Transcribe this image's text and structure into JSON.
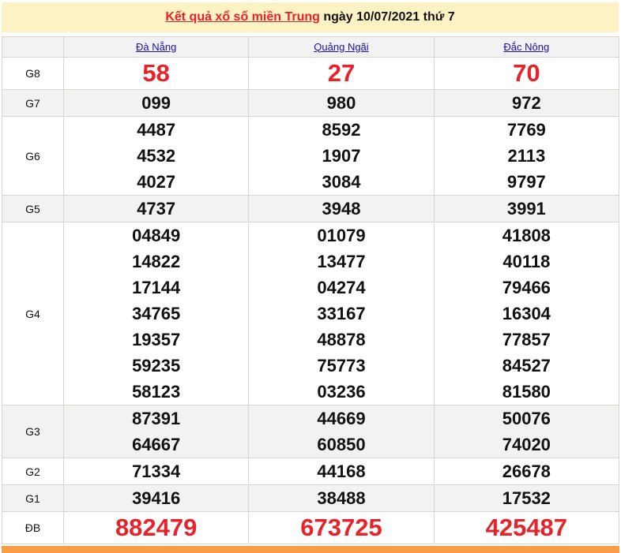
{
  "title": {
    "link": "Kết quả xổ số miền Trung",
    "rest": " ngày 10/07/2021 thứ 7"
  },
  "provinces": [
    "Đà Nẵng",
    "Quảng Ngãi",
    "Đắc Nông"
  ],
  "prizes": [
    {
      "label": "G8",
      "big": true,
      "values": [
        [
          "58"
        ],
        [
          "27"
        ],
        [
          "70"
        ]
      ]
    },
    {
      "label": "G7",
      "values": [
        [
          "099"
        ],
        [
          "980"
        ],
        [
          "972"
        ]
      ]
    },
    {
      "label": "G6",
      "values": [
        [
          "4487",
          "4532",
          "4027"
        ],
        [
          "8592",
          "1907",
          "3084"
        ],
        [
          "7769",
          "2113",
          "9797"
        ]
      ]
    },
    {
      "label": "G5",
      "values": [
        [
          "4737"
        ],
        [
          "3948"
        ],
        [
          "3991"
        ]
      ]
    },
    {
      "label": "G4",
      "values": [
        [
          "04849",
          "14822",
          "17144",
          "34765",
          "19357",
          "59235",
          "58123"
        ],
        [
          "01079",
          "13477",
          "04274",
          "33167",
          "48878",
          "75773",
          "03236"
        ],
        [
          "41808",
          "40118",
          "79466",
          "16304",
          "77857",
          "84527",
          "81580"
        ]
      ]
    },
    {
      "label": "G3",
      "values": [
        [
          "87391",
          "64667"
        ],
        [
          "44669",
          "60850"
        ],
        [
          "50076",
          "74020"
        ]
      ]
    },
    {
      "label": "G2",
      "values": [
        [
          "71334"
        ],
        [
          "44168"
        ],
        [
          "26678"
        ]
      ]
    },
    {
      "label": "G1",
      "values": [
        [
          "39416"
        ],
        [
          "38488"
        ],
        [
          "17532"
        ]
      ]
    },
    {
      "label": "ĐB",
      "big": true,
      "values": [
        [
          "882479"
        ],
        [
          "673725"
        ],
        [
          "425487"
        ]
      ]
    }
  ],
  "colors": {
    "accent": "#e8222b",
    "title_bg": "#fdf2c4",
    "row_gray": "#f2f2f2",
    "footer_bar": "#f89c45"
  }
}
